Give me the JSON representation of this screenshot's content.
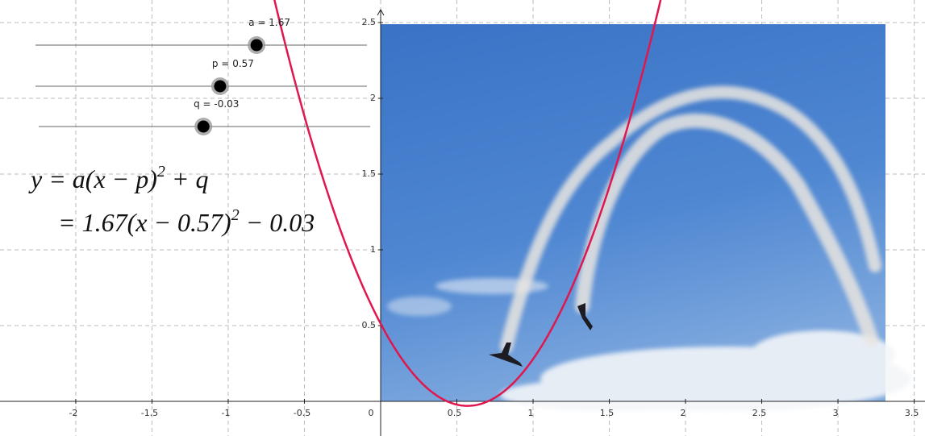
{
  "graph": {
    "xlim": [
      -2.497,
      3.571
    ],
    "ylim": [
      -0.229,
      2.649
    ],
    "xticks": [
      -2,
      -1.5,
      -1,
      -0.5,
      0,
      0.5,
      1,
      1.5,
      2,
      2.5,
      3,
      3.5
    ],
    "yticks": [
      0.5,
      1,
      1.5,
      2,
      2.5
    ],
    "grid": true,
    "curve_color": "#e0174f",
    "sliders": [
      {
        "value": 1.67,
        "label": "a = 1.67",
        "range": [
          -5,
          5
        ]
      },
      {
        "value": 0.57,
        "label": "p = 0.57",
        "range": [
          -5,
          5
        ]
      },
      {
        "value": -0.03,
        "label": "q = -0.03",
        "range": [
          -5,
          5
        ]
      }
    ],
    "formula": {
      "line1": [
        "y = a(x − p)",
        "2",
        " + q"
      ],
      "line2": [
        "= 1.67(x − 0.57)",
        "2",
        " − 0.03"
      ]
    }
  }
}
